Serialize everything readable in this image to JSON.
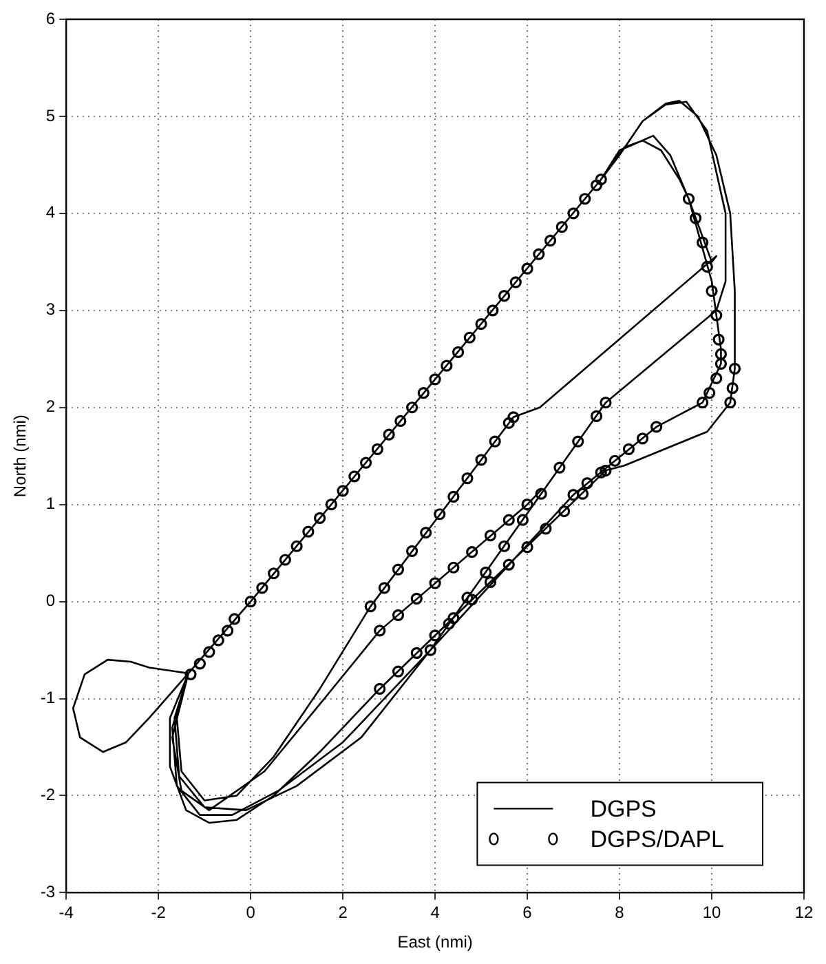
{
  "chart_data": {
    "type": "line",
    "xlabel": "East (nmi)",
    "ylabel": "North (nmi)",
    "xlim": [
      -4,
      12
    ],
    "xticks": [
      -4,
      -2,
      0,
      2,
      4,
      6,
      8,
      10,
      12
    ],
    "ylim": [
      -3,
      6
    ],
    "yticks": [
      -3,
      -2,
      -1,
      0,
      1,
      2,
      3,
      4,
      5,
      6
    ],
    "grid": true,
    "legend": "bottom right",
    "series": [
      {
        "name": "DGPS",
        "color": "#000000",
        "marker": "none",
        "line_style": "solid",
        "x": [
          -1.35,
          -2.2,
          -2.6,
          -3.1,
          -3.6,
          -3.85,
          -3.7,
          -3.2,
          -2.7,
          -2.2,
          -1.35,
          0,
          7.6,
          8.0,
          8.5,
          9.0,
          9.3,
          9.7,
          10.1,
          10.4,
          10.5,
          10.5,
          10.4,
          9.9,
          8.1,
          7.7,
          2.8,
          1.5,
          0.5,
          -0.3,
          -0.9,
          -1.4,
          -1.75,
          -1.75,
          -1.35,
          0,
          7.6,
          8.1,
          8.5,
          8.9,
          9.3,
          9.5,
          10.0,
          10.2,
          10.2,
          9.8,
          8.8,
          7.0,
          3.9,
          2.0,
          0.6,
          -0.4,
          -1.1,
          -1.6,
          -1.7,
          -1.35,
          0,
          7.6,
          8.0,
          8.5,
          9.0,
          9.45,
          9.9,
          10.3,
          10.3,
          10.1,
          7.7,
          3.9,
          2.4,
          1.0,
          -0.1,
          -1.0,
          -1.55,
          -1.65,
          -1.35,
          0,
          7.6,
          8.0,
          8.25,
          8.73,
          9.1,
          9.5,
          10.0,
          10.1,
          6.27,
          5.7,
          2.6,
          1.5,
          0.5,
          -0.3,
          -1.0,
          -1.5,
          -1.6,
          -1.35,
          -1.7,
          -1.5,
          -0.9,
          0.3,
          1.6,
          2.8,
          6.0,
          6.3
        ],
        "values": [
          -0.74,
          -0.68,
          -0.62,
          -0.6,
          -0.75,
          -1.1,
          -1.4,
          -1.55,
          -1.45,
          -1.2,
          -0.74,
          0,
          4.35,
          4.6,
          4.95,
          5.13,
          5.16,
          5.0,
          4.6,
          4.0,
          3.2,
          2.4,
          2.05,
          1.75,
          1.4,
          1.35,
          -0.9,
          -1.55,
          -2.0,
          -2.25,
          -2.28,
          -2.15,
          -1.7,
          -1.2,
          -0.74,
          0,
          4.35,
          4.68,
          4.75,
          4.65,
          4.35,
          4.15,
          3.3,
          2.6,
          2.45,
          2.05,
          1.8,
          1.1,
          -0.5,
          -1.45,
          -1.95,
          -2.2,
          -2.2,
          -1.9,
          -1.3,
          -0.74,
          0,
          4.35,
          4.6,
          4.95,
          5.12,
          5.15,
          4.85,
          4.0,
          3.3,
          3.0,
          2.05,
          -0.5,
          -1.4,
          -1.9,
          -2.15,
          -2.12,
          -1.8,
          -1.2,
          -0.74,
          0,
          4.35,
          4.65,
          4.7,
          4.8,
          4.6,
          4.15,
          3.5,
          3.56,
          2.0,
          1.9,
          -0.05,
          -0.9,
          -1.6,
          -2.0,
          -2.05,
          -1.75,
          -1.2,
          -0.74,
          -1.4,
          -1.95,
          -2.15,
          -1.75,
          -1.0,
          -0.3,
          1.0,
          1.15
        ]
      },
      {
        "name": "DGPS/DAPL",
        "type": "scatter",
        "color": "#000000",
        "marker": "circle",
        "x": [
          -1.3,
          -1.1,
          -0.9,
          -0.7,
          -0.5,
          -0.35,
          0,
          0.25,
          0.5,
          0.75,
          1,
          1.25,
          1.5,
          1.75,
          2,
          2.25,
          2.5,
          2.75,
          3,
          3.25,
          3.5,
          3.75,
          4,
          4.25,
          4.5,
          4.75,
          5,
          5.25,
          5.5,
          5.75,
          6,
          6.25,
          6.5,
          6.75,
          7,
          7.25,
          7.5,
          7.6,
          9.5,
          9.65,
          9.8,
          9.9,
          10.0,
          10.1,
          10.15,
          10.2,
          10.2,
          10.1,
          9.95,
          9.8,
          10.5,
          10.45,
          10.4,
          2.6,
          2.9,
          3.2,
          3.5,
          3.8,
          4.1,
          4.4,
          4.7,
          5.0,
          5.3,
          5.6,
          5.7,
          2.8,
          3.2,
          3.6,
          4.0,
          4.4,
          4.8,
          5.2,
          5.6,
          6.0,
          2.8,
          3.2,
          3.6,
          4.0,
          4.4,
          4.8,
          5.2,
          5.6,
          6.0,
          6.4,
          6.8,
          7.2,
          7.7,
          3.9,
          4.3,
          4.7,
          5.1,
          5.5,
          5.9,
          6.3,
          6.7,
          7.1,
          7.5,
          7.7,
          7.0,
          7.3,
          7.6,
          7.9,
          8.2,
          8.5,
          8.8
        ],
        "values": [
          -0.75,
          -0.64,
          -0.52,
          -0.4,
          -0.3,
          -0.18,
          0,
          0.14,
          0.29,
          0.43,
          0.57,
          0.72,
          0.86,
          1.0,
          1.14,
          1.29,
          1.43,
          1.57,
          1.72,
          1.86,
          2.0,
          2.15,
          2.29,
          2.43,
          2.57,
          2.72,
          2.86,
          3.0,
          3.15,
          3.29,
          3.43,
          3.58,
          3.72,
          3.86,
          4.0,
          4.15,
          4.29,
          4.35,
          4.15,
          3.95,
          3.7,
          3.45,
          3.2,
          2.95,
          2.7,
          2.55,
          2.45,
          2.3,
          2.15,
          2.05,
          2.4,
          2.2,
          2.05,
          -0.05,
          0.14,
          0.33,
          0.52,
          0.71,
          0.9,
          1.08,
          1.27,
          1.46,
          1.65,
          1.84,
          1.9,
          -0.3,
          -0.14,
          0.03,
          0.19,
          0.35,
          0.51,
          0.68,
          0.84,
          1.0,
          -0.9,
          -0.72,
          -0.53,
          -0.35,
          -0.17,
          0.02,
          0.2,
          0.38,
          0.56,
          0.75,
          0.93,
          1.11,
          1.35,
          -0.5,
          -0.23,
          0.04,
          0.3,
          0.57,
          0.84,
          1.11,
          1.38,
          1.65,
          1.91,
          2.05,
          1.1,
          1.22,
          1.33,
          1.45,
          1.57,
          1.68,
          1.8
        ]
      }
    ]
  }
}
